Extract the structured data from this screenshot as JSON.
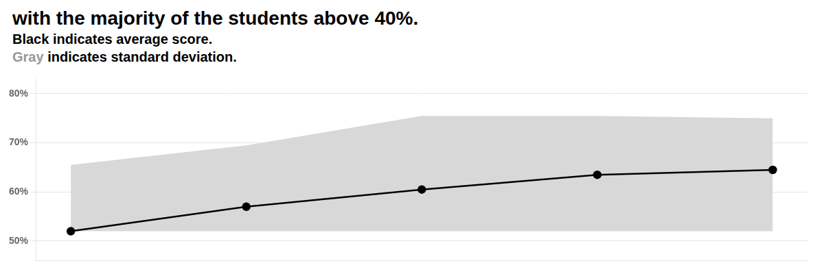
{
  "chart_data": {
    "type": "line",
    "title": "with the majority of the students above 40%.",
    "subtitle": [
      "Black indicates average score.",
      [
        {
          "text": "Gray",
          "color": "#999999"
        },
        {
          "text": " indicates standard deviation."
        }
      ]
    ],
    "x": [
      0,
      1,
      2,
      3,
      4
    ],
    "series": [
      {
        "type": "line",
        "color": "#000000",
        "marker": "circle",
        "values": [
          0.52,
          0.57,
          0.605,
          0.635,
          0.645
        ]
      },
      {
        "type": "band",
        "color": "#d8d8d8",
        "lower": [
          0.52,
          0.52,
          0.52,
          0.52,
          0.52
        ],
        "upper": [
          0.655,
          0.695,
          0.755,
          0.755,
          0.75
        ]
      }
    ],
    "xlim": [
      -0.2,
      4.2
    ],
    "xticks": [],
    "ylim": [
      0.46,
      0.83
    ],
    "yticks": [
      {
        "value": 0.5,
        "label": "50%"
      },
      {
        "value": 0.6,
        "label": "60%"
      },
      {
        "value": 0.7,
        "label": "70%"
      },
      {
        "value": 0.8,
        "label": "80%"
      }
    ],
    "grid": true,
    "tick_labels": "y"
  }
}
